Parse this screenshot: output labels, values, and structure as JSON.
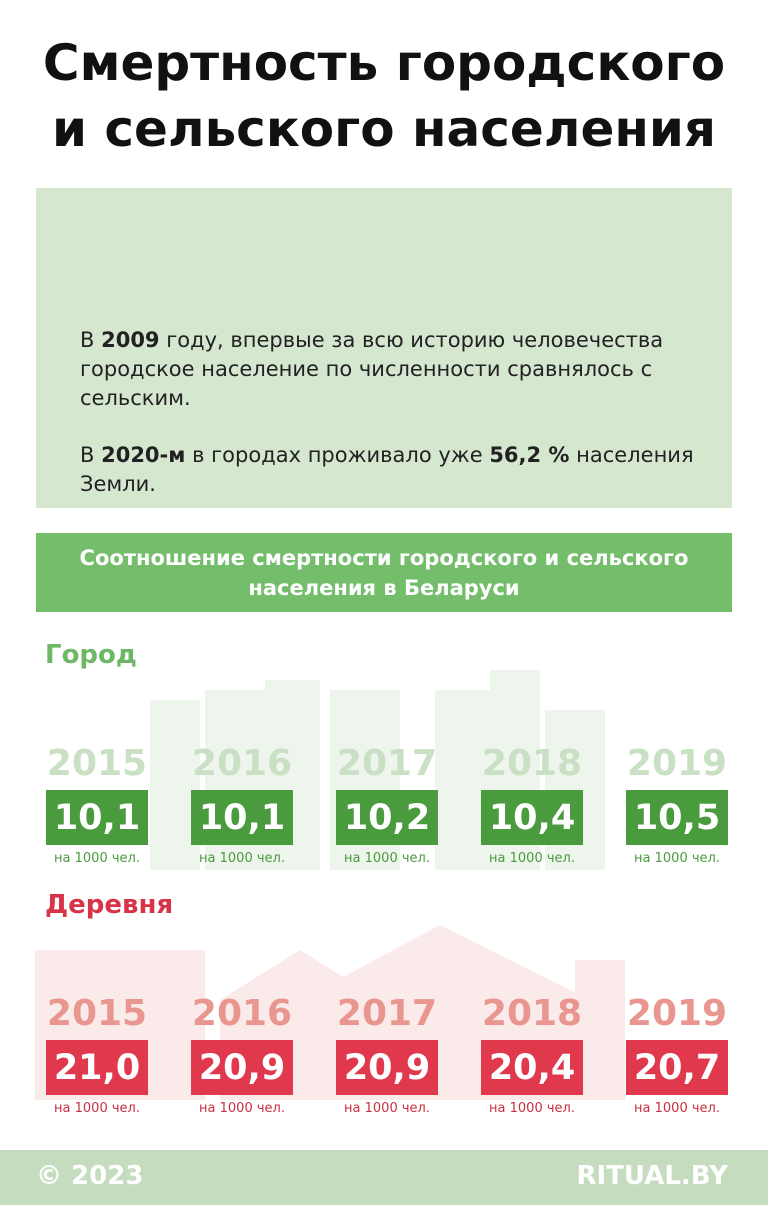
{
  "title": [
    "Смертность городского",
    "и сельского населения"
  ],
  "intro": [
    [
      "В ",
      "2009",
      " году, впервые за всю историю человечества городское население по численности сравнялось с сельским."
    ],
    [
      "В ",
      "2020-м",
      " в городах проживало уже ",
      "56,2 %",
      " населения Земли."
    ]
  ],
  "section_title": "Соотношение смертности городского и сельского населения в Беларуси",
  "groups": [
    {
      "label": "Город",
      "label_color": "#6db765",
      "year_color": "#c9e0c4",
      "box_color": "#4a9a3e",
      "unit_color": "#4a9a3e",
      "items": [
        {
          "year": "2015",
          "value": "10,1",
          "unit": "на 1000 чел."
        },
        {
          "year": "2016",
          "value": "10,1",
          "unit": "на 1000 чел."
        },
        {
          "year": "2017",
          "value": "10,2",
          "unit": "на 1000 чел."
        },
        {
          "year": "2018",
          "value": "10,4",
          "unit": "на 1000 чел."
        },
        {
          "year": "2019",
          "value": "10,5",
          "unit": "на 1000 чел."
        }
      ]
    },
    {
      "label": "Деревня",
      "label_color": "#d9334a",
      "year_color": "#e8968f",
      "box_color": "#e0384d",
      "unit_color": "#c8303f",
      "items": [
        {
          "year": "2015",
          "value": "21,0",
          "unit": "на 1000 чел."
        },
        {
          "year": "2016",
          "value": "20,9",
          "unit": "на 1000 чел."
        },
        {
          "year": "2017",
          "value": "20,9",
          "unit": "на 1000 чел."
        },
        {
          "year": "2018",
          "value": "20,4",
          "unit": "на 1000 чел."
        },
        {
          "year": "2019",
          "value": "20,7",
          "unit": "на 1000 чел."
        }
      ]
    }
  ],
  "footer": {
    "left": "© 2023",
    "right": "RITUAL.BY"
  }
}
